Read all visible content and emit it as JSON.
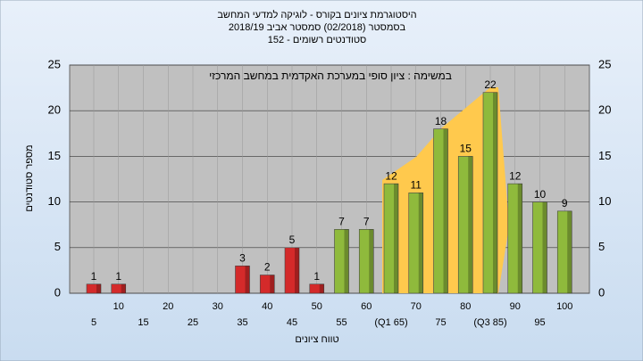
{
  "chart_data": {
    "type": "bar",
    "title_lines": [
      "היסטוגרמת ציונים בקורס - לוגיקה למדעי המחשב",
      "בסמסטר  (02/2018)  סמסטר אביב 2018/19",
      "סטודנטים רשומים - 152"
    ],
    "annotation": "במשימה : ציון סופי במערכת האקדמית במחשב המרכזי",
    "x_label": "טווח ציונים",
    "y_label": "מספר סטודנטים",
    "categories": [
      "5",
      "10",
      "15",
      "20",
      "25",
      "30",
      "35",
      "40",
      "45",
      "50",
      "55",
      "60",
      "(Q1 65)",
      "70",
      "75",
      "80",
      "(Q3 85)",
      "90",
      "95",
      "100"
    ],
    "values": [
      1,
      1,
      0,
      0,
      0,
      0,
      3,
      2,
      5,
      1,
      7,
      7,
      12,
      11,
      18,
      15,
      22,
      12,
      10,
      9
    ],
    "colors": [
      "#d42a2a",
      "#d42a2a",
      "#d42a2a",
      "#d42a2a",
      "#d42a2a",
      "#d42a2a",
      "#d42a2a",
      "#d42a2a",
      "#d42a2a",
      "#d42a2a",
      "#8fba3c",
      "#8fba3c",
      "#8fba3c",
      "#8fba3c",
      "#8fba3c",
      "#8fba3c",
      "#8fba3c",
      "#8fba3c",
      "#8fba3c",
      "#8fba3c"
    ],
    "ylim": [
      0,
      25
    ],
    "yticks": [
      0,
      5,
      10,
      15,
      20,
      25
    ],
    "grid": true
  }
}
